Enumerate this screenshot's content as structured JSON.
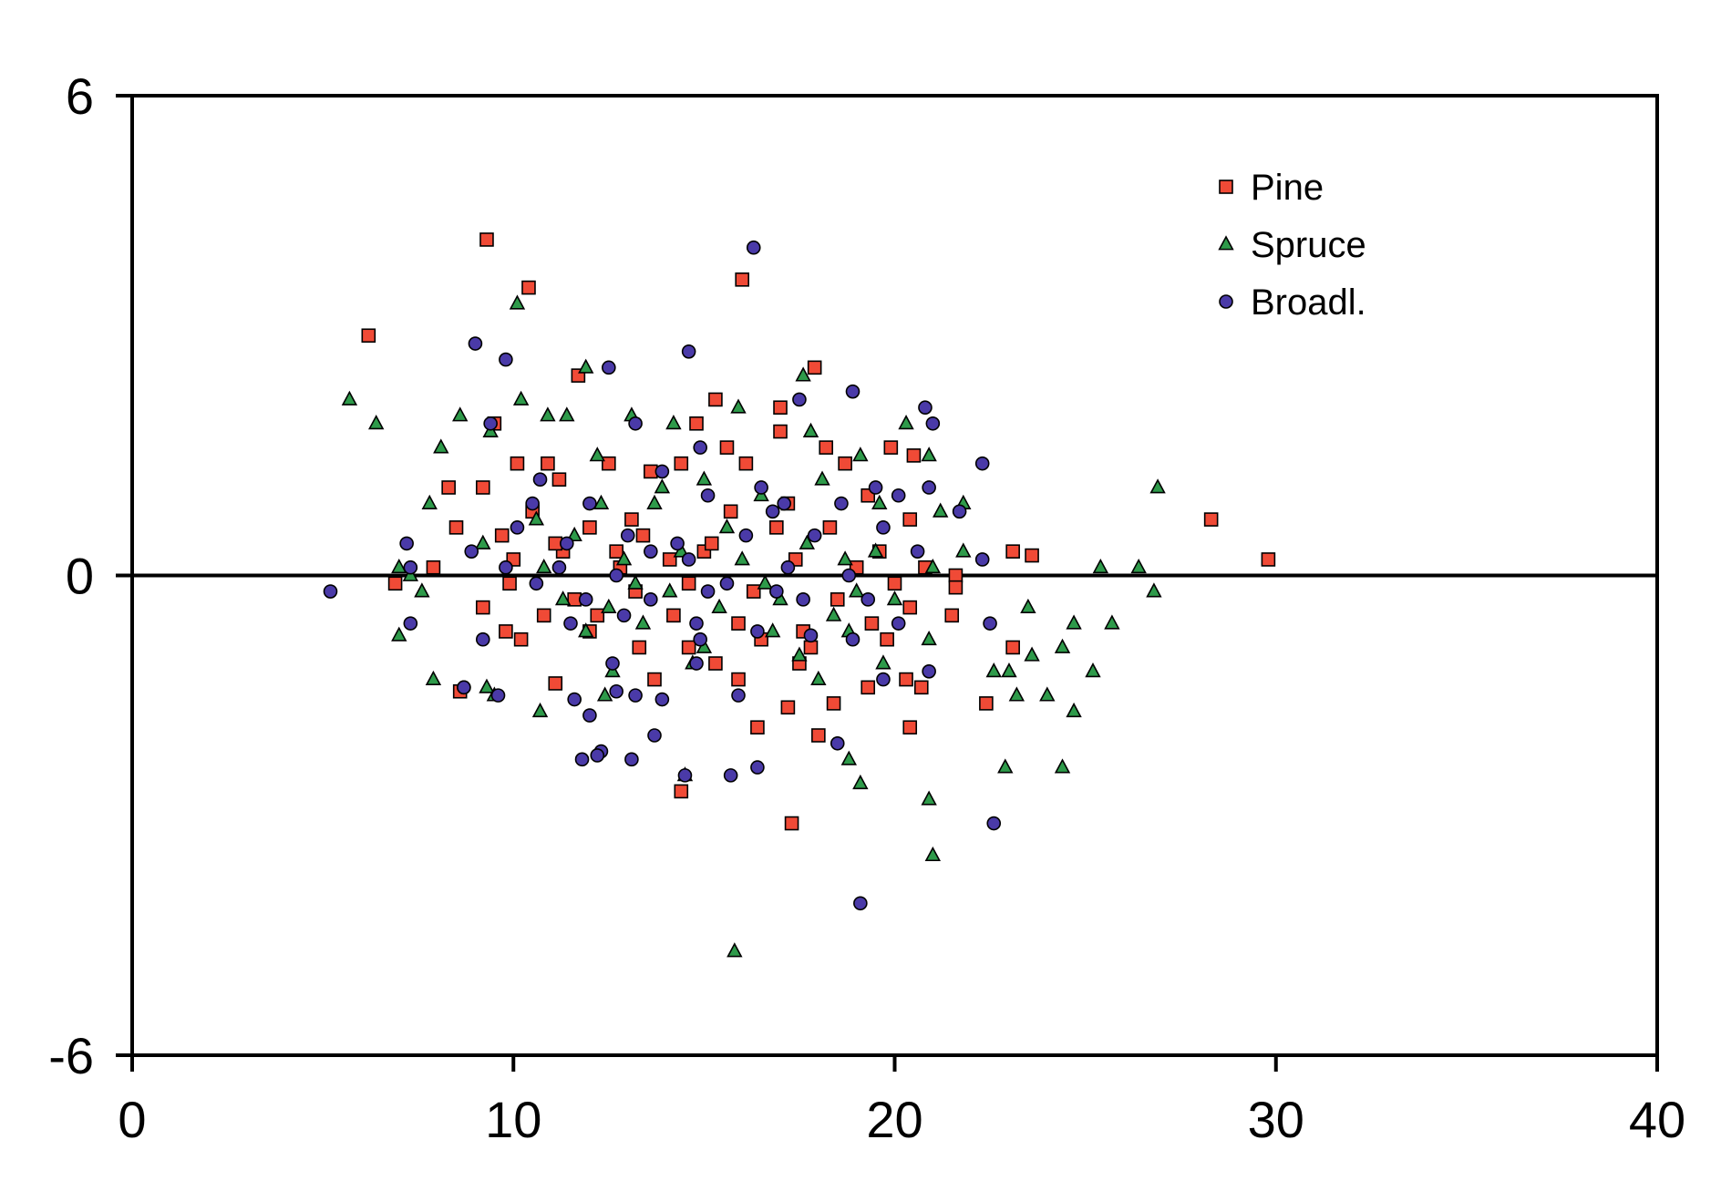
{
  "chart_data": {
    "type": "scatter",
    "title": "",
    "xlabel": "",
    "ylabel": "",
    "xlim": [
      0,
      40
    ],
    "ylim": [
      -6,
      6
    ],
    "xticks": [
      "0",
      "10",
      "20",
      "30",
      "40"
    ],
    "yticks": [
      "6",
      "0",
      "-6"
    ],
    "reference_line_y": 0,
    "grid": false,
    "legend_position": "top-right",
    "series": [
      {
        "name": "Pine",
        "marker": "square",
        "color": "#f04a36",
        "points": [
          [
            6.2,
            3.0
          ],
          [
            9.3,
            4.2
          ],
          [
            10.4,
            3.6
          ],
          [
            16.0,
            3.7
          ],
          [
            17.9,
            2.6
          ],
          [
            11.7,
            2.5
          ],
          [
            15.3,
            2.2
          ],
          [
            17.0,
            2.1
          ],
          [
            9.5,
            1.9
          ],
          [
            14.8,
            1.9
          ],
          [
            17.0,
            1.8
          ],
          [
            18.2,
            1.6
          ],
          [
            15.6,
            1.6
          ],
          [
            14.4,
            1.4
          ],
          [
            19.9,
            1.6
          ],
          [
            20.5,
            1.5
          ],
          [
            10.1,
            1.4
          ],
          [
            10.9,
            1.4
          ],
          [
            16.1,
            1.4
          ],
          [
            12.5,
            1.4
          ],
          [
            8.3,
            1.1
          ],
          [
            9.2,
            1.1
          ],
          [
            11.2,
            1.2
          ],
          [
            13.6,
            1.3
          ],
          [
            18.7,
            1.4
          ],
          [
            8.5,
            0.6
          ],
          [
            9.7,
            0.5
          ],
          [
            12.0,
            0.6
          ],
          [
            13.4,
            0.5
          ],
          [
            16.9,
            0.6
          ],
          [
            20.4,
            0.7
          ],
          [
            28.3,
            0.7
          ],
          [
            23.1,
            0.3
          ],
          [
            23.6,
            0.25
          ],
          [
            29.8,
            0.2
          ],
          [
            7.9,
            0.1
          ],
          [
            10.0,
            0.2
          ],
          [
            11.3,
            0.3
          ],
          [
            12.8,
            0.1
          ],
          [
            14.1,
            0.2
          ],
          [
            15.0,
            0.3
          ],
          [
            17.4,
            0.2
          ],
          [
            19.0,
            0.1
          ],
          [
            20.8,
            0.1
          ],
          [
            21.6,
            0.0
          ],
          [
            6.9,
            -0.1
          ],
          [
            9.9,
            -0.1
          ],
          [
            11.6,
            -0.3
          ],
          [
            13.2,
            -0.2
          ],
          [
            14.6,
            -0.1
          ],
          [
            16.3,
            -0.2
          ],
          [
            18.5,
            -0.3
          ],
          [
            20.0,
            -0.1
          ],
          [
            21.6,
            -0.15
          ],
          [
            9.2,
            -0.4
          ],
          [
            10.8,
            -0.5
          ],
          [
            12.2,
            -0.5
          ],
          [
            14.2,
            -0.5
          ],
          [
            15.9,
            -0.6
          ],
          [
            17.6,
            -0.7
          ],
          [
            19.4,
            -0.6
          ],
          [
            20.4,
            -0.4
          ],
          [
            9.8,
            -0.7
          ],
          [
            10.2,
            -0.8
          ],
          [
            13.3,
            -0.9
          ],
          [
            14.6,
            -0.9
          ],
          [
            16.5,
            -0.8
          ],
          [
            17.8,
            -0.9
          ],
          [
            19.8,
            -0.8
          ],
          [
            21.5,
            -0.5
          ],
          [
            23.1,
            -0.9
          ],
          [
            12.0,
            -0.7
          ],
          [
            13.7,
            -1.3
          ],
          [
            15.9,
            -1.3
          ],
          [
            17.5,
            -1.1
          ],
          [
            19.3,
            -1.4
          ],
          [
            20.3,
            -1.3
          ],
          [
            20.7,
            -1.4
          ],
          [
            22.4,
            -1.6
          ],
          [
            8.6,
            -1.45
          ],
          [
            11.1,
            -1.35
          ],
          [
            15.3,
            -1.1
          ],
          [
            17.2,
            -1.65
          ],
          [
            18.4,
            -1.6
          ],
          [
            20.4,
            -1.9
          ],
          [
            16.4,
            -1.9
          ],
          [
            18.0,
            -2.0
          ],
          [
            14.4,
            -2.7
          ],
          [
            17.3,
            -3.1
          ],
          [
            11.1,
            0.4
          ],
          [
            12.7,
            0.3
          ],
          [
            15.2,
            0.4
          ],
          [
            18.3,
            0.6
          ],
          [
            19.6,
            0.3
          ],
          [
            10.5,
            0.8
          ],
          [
            13.1,
            0.7
          ],
          [
            15.7,
            0.8
          ],
          [
            17.2,
            0.9
          ],
          [
            19.3,
            1.0
          ]
        ]
      },
      {
        "name": "Spruce",
        "marker": "triangle",
        "color": "#2e9a4a",
        "points": [
          [
            5.7,
            2.2
          ],
          [
            6.4,
            1.9
          ],
          [
            10.1,
            3.4
          ],
          [
            11.9,
            2.6
          ],
          [
            8.1,
            1.6
          ],
          [
            8.6,
            2.0
          ],
          [
            9.4,
            1.8
          ],
          [
            10.2,
            2.2
          ],
          [
            10.9,
            2.0
          ],
          [
            11.4,
            2.0
          ],
          [
            13.1,
            2.0
          ],
          [
            14.2,
            1.9
          ],
          [
            15.9,
            2.1
          ],
          [
            17.6,
            2.5
          ],
          [
            17.8,
            1.8
          ],
          [
            19.1,
            1.5
          ],
          [
            20.3,
            1.9
          ],
          [
            20.9,
            1.5
          ],
          [
            7.8,
            0.9
          ],
          [
            9.2,
            0.4
          ],
          [
            10.6,
            0.7
          ],
          [
            12.3,
            0.9
          ],
          [
            13.7,
            0.9
          ],
          [
            15.0,
            1.2
          ],
          [
            16.5,
            1.0
          ],
          [
            18.1,
            1.2
          ],
          [
            19.6,
            0.9
          ],
          [
            21.2,
            0.8
          ],
          [
            21.8,
            0.9
          ],
          [
            26.9,
            1.1
          ],
          [
            7.0,
            0.1
          ],
          [
            7.3,
            0.0
          ],
          [
            10.8,
            0.1
          ],
          [
            12.9,
            0.2
          ],
          [
            14.4,
            0.3
          ],
          [
            16.0,
            0.2
          ],
          [
            17.7,
            0.4
          ],
          [
            19.5,
            0.3
          ],
          [
            21.0,
            0.1
          ],
          [
            21.8,
            0.3
          ],
          [
            25.4,
            0.1
          ],
          [
            26.4,
            0.1
          ],
          [
            7.6,
            -0.2
          ],
          [
            11.3,
            -0.3
          ],
          [
            12.5,
            -0.4
          ],
          [
            14.1,
            -0.2
          ],
          [
            15.4,
            -0.4
          ],
          [
            17.0,
            -0.3
          ],
          [
            18.4,
            -0.5
          ],
          [
            20.0,
            -0.3
          ],
          [
            26.8,
            -0.2
          ],
          [
            7.0,
            -0.75
          ],
          [
            11.9,
            -0.7
          ],
          [
            13.4,
            -0.6
          ],
          [
            15.0,
            -0.9
          ],
          [
            16.8,
            -0.7
          ],
          [
            18.8,
            -0.7
          ],
          [
            20.9,
            -0.8
          ],
          [
            23.5,
            -0.4
          ],
          [
            24.7,
            -0.6
          ],
          [
            25.7,
            -0.6
          ],
          [
            7.9,
            -1.3
          ],
          [
            9.3,
            -1.4
          ],
          [
            12.6,
            -1.2
          ],
          [
            14.7,
            -1.1
          ],
          [
            17.5,
            -1.0
          ],
          [
            19.7,
            -1.1
          ],
          [
            23.0,
            -1.2
          ],
          [
            23.6,
            -1.0
          ],
          [
            24.4,
            -0.9
          ],
          [
            25.2,
            -1.2
          ],
          [
            10.7,
            -1.7
          ],
          [
            12.4,
            -1.5
          ],
          [
            18.0,
            -1.3
          ],
          [
            22.6,
            -1.2
          ],
          [
            23.2,
            -1.5
          ],
          [
            24.0,
            -1.5
          ],
          [
            24.7,
            -1.7
          ],
          [
            18.8,
            -2.3
          ],
          [
            14.5,
            -2.5
          ],
          [
            19.1,
            -2.6
          ],
          [
            22.9,
            -2.4
          ],
          [
            24.4,
            -2.4
          ],
          [
            20.9,
            -2.8
          ],
          [
            21.0,
            -3.5
          ],
          [
            15.8,
            -4.7
          ],
          [
            9.5,
            -1.5
          ],
          [
            13.9,
            1.1
          ],
          [
            12.2,
            1.5
          ],
          [
            15.6,
            0.6
          ],
          [
            18.7,
            0.2
          ],
          [
            11.6,
            0.5
          ],
          [
            13.2,
            -0.1
          ],
          [
            16.6,
            -0.1
          ],
          [
            19.0,
            -0.2
          ]
        ]
      },
      {
        "name": "Broadl.",
        "marker": "circle",
        "color": "#4a3aa8",
        "points": [
          [
            16.3,
            4.1
          ],
          [
            9.0,
            2.9
          ],
          [
            9.8,
            2.7
          ],
          [
            14.6,
            2.8
          ],
          [
            12.5,
            2.6
          ],
          [
            18.9,
            2.3
          ],
          [
            17.5,
            2.2
          ],
          [
            20.8,
            2.1
          ],
          [
            21.0,
            1.9
          ],
          [
            9.4,
            1.9
          ],
          [
            13.2,
            1.9
          ],
          [
            14.9,
            1.6
          ],
          [
            22.3,
            1.4
          ],
          [
            10.7,
            1.2
          ],
          [
            13.9,
            1.3
          ],
          [
            16.5,
            1.1
          ],
          [
            19.5,
            1.1
          ],
          [
            20.9,
            1.1
          ],
          [
            10.5,
            0.9
          ],
          [
            12.0,
            0.9
          ],
          [
            15.1,
            1.0
          ],
          [
            17.1,
            0.9
          ],
          [
            18.6,
            0.9
          ],
          [
            20.1,
            1.0
          ],
          [
            21.7,
            0.8
          ],
          [
            7.2,
            0.4
          ],
          [
            8.9,
            0.3
          ],
          [
            11.4,
            0.4
          ],
          [
            13.0,
            0.5
          ],
          [
            14.3,
            0.4
          ],
          [
            16.1,
            0.5
          ],
          [
            17.9,
            0.5
          ],
          [
            19.7,
            0.6
          ],
          [
            20.6,
            0.3
          ],
          [
            22.3,
            0.2
          ],
          [
            7.3,
            0.1
          ],
          [
            9.8,
            0.1
          ],
          [
            11.2,
            0.1
          ],
          [
            12.7,
            0.0
          ],
          [
            14.6,
            0.2
          ],
          [
            17.2,
            0.1
          ],
          [
            18.8,
            0.0
          ],
          [
            5.2,
            -0.2
          ],
          [
            10.6,
            -0.1
          ],
          [
            13.6,
            -0.3
          ],
          [
            15.1,
            -0.2
          ],
          [
            16.9,
            -0.2
          ],
          [
            19.3,
            -0.3
          ],
          [
            7.3,
            -0.6
          ],
          [
            11.5,
            -0.6
          ],
          [
            12.9,
            -0.5
          ],
          [
            14.8,
            -0.6
          ],
          [
            16.4,
            -0.7
          ],
          [
            18.9,
            -0.8
          ],
          [
            20.1,
            -0.6
          ],
          [
            22.5,
            -0.6
          ],
          [
            9.2,
            -0.8
          ],
          [
            14.9,
            -0.8
          ],
          [
            17.8,
            -0.75
          ],
          [
            20.9,
            -1.2
          ],
          [
            12.6,
            -1.1
          ],
          [
            14.8,
            -1.1
          ],
          [
            19.7,
            -1.3
          ],
          [
            8.7,
            -1.4
          ],
          [
            9.6,
            -1.5
          ],
          [
            11.6,
            -1.55
          ],
          [
            12.7,
            -1.45
          ],
          [
            13.2,
            -1.5
          ],
          [
            13.9,
            -1.55
          ],
          [
            15.9,
            -1.5
          ],
          [
            12.0,
            -1.75
          ],
          [
            12.3,
            -2.2
          ],
          [
            13.7,
            -2.0
          ],
          [
            18.5,
            -2.1
          ],
          [
            11.8,
            -2.3
          ],
          [
            12.2,
            -2.25
          ],
          [
            13.1,
            -2.3
          ],
          [
            14.5,
            -2.5
          ],
          [
            15.7,
            -2.5
          ],
          [
            16.4,
            -2.4
          ],
          [
            22.6,
            -3.1
          ],
          [
            19.1,
            -4.1
          ],
          [
            8.7,
            -1.4
          ],
          [
            10.1,
            0.6
          ],
          [
            15.6,
            -0.1
          ],
          [
            17.6,
            -0.3
          ],
          [
            11.9,
            -0.3
          ],
          [
            16.8,
            0.8
          ],
          [
            13.6,
            0.3
          ]
        ]
      }
    ]
  }
}
